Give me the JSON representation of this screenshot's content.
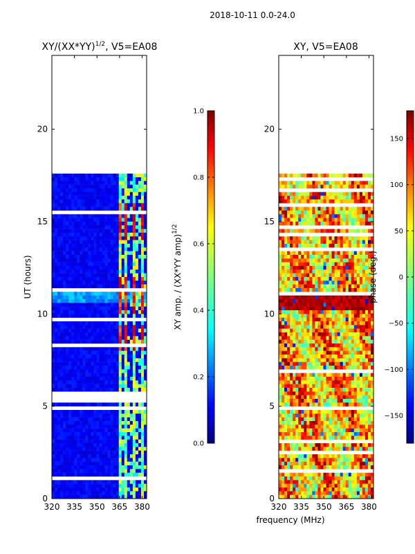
{
  "figure": {
    "suptitle": "2018-10-11 0.0-24.0",
    "xlabel_shared": "frequency (MHz)"
  },
  "chart_data": [
    {
      "type": "heatmap",
      "title": "XY/(XX*YY)",
      "title_exponent": "1/2",
      "title_suffix": ", V5=EA08",
      "ylabel": "UT (hours)",
      "xlabel": "",
      "xlim": [
        320,
        383
      ],
      "ylim": [
        0,
        24
      ],
      "xticks": [
        320,
        335,
        350,
        365,
        380
      ],
      "yticks": [
        0,
        5,
        10,
        15,
        20
      ],
      "data_extent_hours": [
        0,
        17.6
      ],
      "rfi_channels_mhz": [
        365,
        369,
        370,
        375,
        380
      ],
      "colorbar": {
        "label": "XY amp. / (XX*YY amp)",
        "label_exponent": "1/2",
        "range": [
          0.0,
          1.0
        ],
        "ticks": [
          "0.0",
          "0.2",
          "0.4",
          "0.6",
          "0.8",
          "1.0"
        ],
        "tick_values": [
          0.0,
          0.2,
          0.4,
          0.6,
          0.8,
          1.0
        ],
        "colormap": "jet"
      }
    },
    {
      "type": "heatmap",
      "title": "XY, V5=EA08",
      "ylabel": "",
      "xlabel": "frequency (MHz)",
      "xlim": [
        320,
        383
      ],
      "ylim": [
        0,
        24
      ],
      "xticks": [
        320,
        335,
        350,
        365,
        380
      ],
      "yticks": [
        0,
        5,
        10,
        15,
        20
      ],
      "data_extent_hours": [
        0,
        17.6
      ],
      "colorbar": {
        "label": "phase (deg.)",
        "range": [
          -180,
          180
        ],
        "ticks": [
          "150",
          "100",
          "50",
          "0",
          "−50",
          "−100",
          "−150"
        ],
        "tick_values": [
          150,
          100,
          50,
          0,
          -50,
          -100,
          -150
        ],
        "colormap": "jet"
      }
    }
  ],
  "colors": {
    "jet": [
      "#00007f",
      "#0000ff",
      "#007fff",
      "#00ffff",
      "#7fff7f",
      "#ffff00",
      "#ff7f00",
      "#ff0000",
      "#7f0000"
    ]
  }
}
